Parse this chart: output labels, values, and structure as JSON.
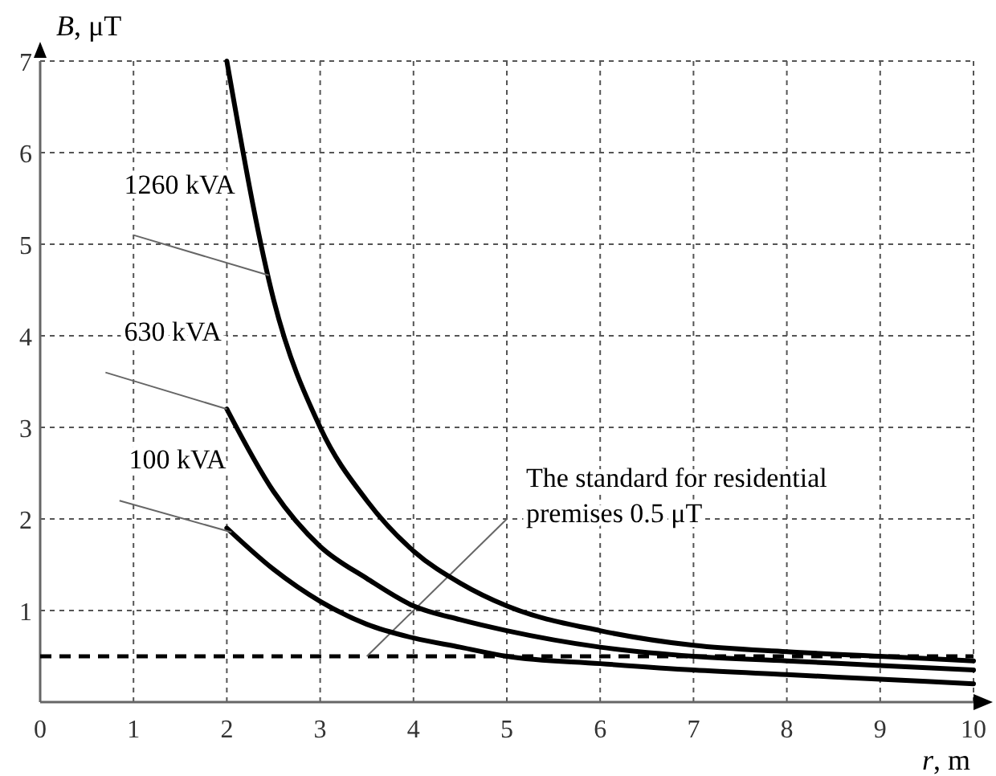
{
  "chart_data": {
    "type": "line",
    "xlabel": "r, m",
    "ylabel": "B, μT",
    "x": [
      2,
      2.5,
      3,
      3.5,
      4,
      4.5,
      5,
      6,
      7,
      8,
      9,
      10
    ],
    "series": [
      {
        "name": "1260 kVA",
        "color": "#000000",
        "values": [
          7.0,
          4.4,
          3.0,
          2.2,
          1.65,
          1.3,
          1.05,
          0.78,
          0.62,
          0.55,
          0.5,
          0.45
        ]
      },
      {
        "name": "630 kVA",
        "color": "#000000",
        "values": [
          3.2,
          2.3,
          1.7,
          1.35,
          1.05,
          0.9,
          0.78,
          0.6,
          0.5,
          0.45,
          0.4,
          0.35
        ]
      },
      {
        "name": "100 kVA",
        "color": "#000000",
        "values": [
          1.9,
          1.45,
          1.1,
          0.85,
          0.7,
          0.6,
          0.5,
          0.42,
          0.35,
          0.3,
          0.25,
          0.2
        ]
      }
    ],
    "xlim": [
      0,
      10
    ],
    "ylim": [
      0,
      7
    ],
    "xticks": [
      0,
      1,
      2,
      3,
      4,
      5,
      6,
      7,
      8,
      9,
      10
    ],
    "yticks": [
      {
        "value": 0,
        "label": null
      },
      1,
      2,
      3,
      4,
      5,
      6,
      7
    ],
    "grid": true,
    "line_style": "solid",
    "marker": "none",
    "ref_lines": [
      {
        "axis": "y",
        "value": 0.5,
        "label": "The standard for residential premises 0.5 μT",
        "color": "#000000",
        "line_style": "dashed"
      }
    ]
  }
}
